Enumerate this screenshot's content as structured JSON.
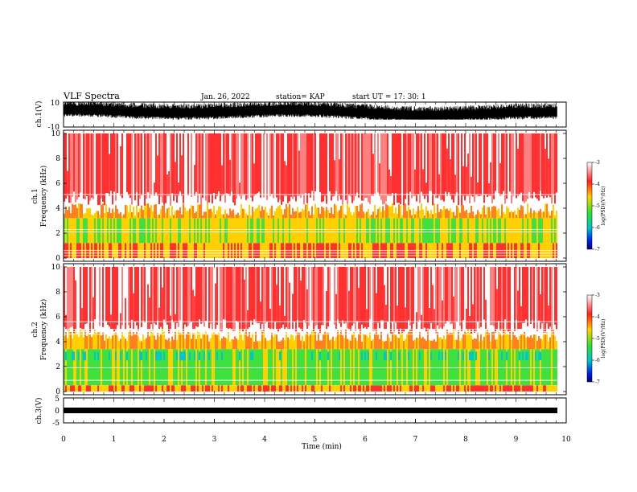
{
  "header": {
    "title": "VLF Spectra",
    "date": "Jan. 26, 2022",
    "station": "station= KAP",
    "start": "start  UT =   17: 30: 1"
  },
  "colors": {
    "spectrogram": [
      "#ffffff",
      "#ff3030",
      "#ffd000",
      "#40e040",
      "#00c8c8",
      "#0000c0"
    ],
    "waveform": "#000000"
  },
  "chart_data": [
    {
      "type": "line",
      "panel": "ch1-waveform",
      "ylabel": "ch.1(V)",
      "ylim": [
        -10,
        10
      ],
      "yticks": [
        "10",
        "-10"
      ],
      "xlim": [
        0,
        10
      ],
      "description_values": "dense noise between about -3 and 9 V"
    },
    {
      "type": "heatmap",
      "panel": "ch1-spectrogram",
      "ylabel_top": "ch.1",
      "ylabel": "Frequency  (kHz)",
      "ylim": [
        0,
        10
      ],
      "yticks": [
        "0",
        "2",
        "4",
        "6",
        "8",
        "10"
      ],
      "xlim": [
        0,
        10.0
      ],
      "colorbar": {
        "label": "log(PSD)(V²/Hz)",
        "range": [
          -7,
          -3
        ],
        "ticks": [
          "-3",
          "-4",
          "-5",
          "-6",
          "-7"
        ]
      }
    },
    {
      "type": "heatmap",
      "panel": "ch2-spectrogram",
      "ylabel_top": "ch.2",
      "ylabel": "Frequency  (kHz)",
      "ylim": [
        0,
        10
      ],
      "yticks": [
        "0",
        "2",
        "4",
        "6",
        "8",
        "10"
      ],
      "xlim": [
        0,
        10.0
      ],
      "colorbar": {
        "label": "log(PSD)(V²/Hz)",
        "range": [
          -7,
          -3
        ],
        "ticks": [
          "-3",
          "-4",
          "-5",
          "-6",
          "-7"
        ]
      }
    },
    {
      "type": "line",
      "panel": "ch3-waveform",
      "ylabel": "ch.3(V)",
      "ylim": [
        -5,
        5
      ],
      "yticks": [
        "5",
        "0",
        "-5"
      ],
      "xlim": [
        0,
        10
      ],
      "xlabel": "Time  (min)",
      "xticks": [
        "0",
        "1",
        "2",
        "3",
        "4",
        "5",
        "6",
        "7",
        "8",
        "9",
        "10"
      ]
    }
  ]
}
